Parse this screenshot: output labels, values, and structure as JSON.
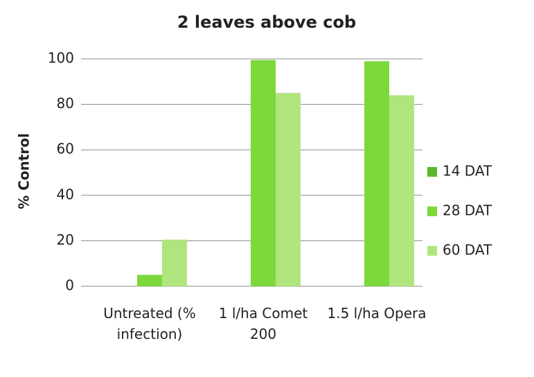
{
  "chart_data": {
    "type": "bar",
    "title": "2 leaves above cob",
    "ylabel": "% Control",
    "categories": [
      "Untreated (% infection)",
      "1 l/ha Comet 200",
      "1.5 l/ha Opera"
    ],
    "series": [
      {
        "name": "14 DAT",
        "color": "#5cb82a",
        "values": [
          0,
          0,
          0
        ]
      },
      {
        "name": "28 DAT",
        "color": "#7dd83a",
        "values": [
          5,
          99.5,
          99
        ]
      },
      {
        "name": "60 DAT",
        "color": "#b0e57e",
        "values": [
          20.5,
          85,
          84
        ]
      }
    ],
    "ylim": [
      0,
      100
    ],
    "yticks": [
      0,
      20,
      40,
      60,
      80,
      100
    ],
    "grid": true,
    "legend": "right"
  }
}
